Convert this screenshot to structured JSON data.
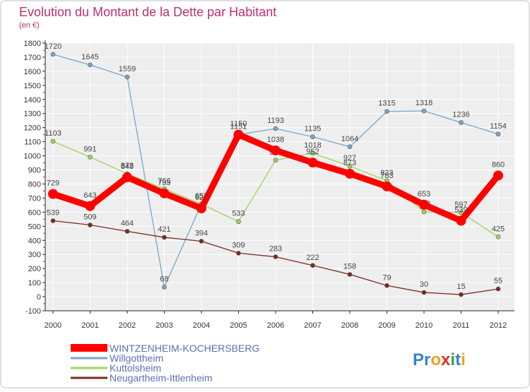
{
  "chart_data": {
    "type": "line",
    "title": "Evolution du Montant de la Dette par Habitant",
    "subtitle": "(en €)",
    "x": [
      "2000",
      "2001",
      "2002",
      "2003",
      "2004",
      "2005",
      "2006",
      "2007",
      "2008",
      "2009",
      "2010",
      "2011",
      "2012"
    ],
    "y_ticks": [
      "-100",
      "0",
      "100",
      "200",
      "300",
      "400",
      "500",
      "600",
      "700",
      "800",
      "900",
      "1000",
      "1100",
      "1200",
      "1300",
      "1400",
      "1500",
      "1600",
      "1700",
      "1800"
    ],
    "ylim": [
      -100,
      1800
    ],
    "grid": true,
    "legend_position": "bottom-left",
    "series": [
      {
        "name": "WINTZENHEIM-KOCHERSBERG",
        "color": "#ff0000",
        "values": [
          729,
          643,
          848,
          733,
          627,
          1150,
          1038,
          952,
          873,
          783,
          653,
          539,
          860
        ],
        "labels": [
          "729",
          "643",
          "848",
          "733",
          "627",
          "1150",
          "1038",
          "952",
          "873",
          "783",
          "653",
          "539",
          "860"
        ]
      },
      {
        "name": "Willgottheim",
        "color": "#7aa6c9",
        "values": [
          1720,
          1645,
          1559,
          68,
          657,
          1151,
          1193,
          1135,
          1064,
          1315,
          1318,
          1236,
          1154
        ],
        "labels": [
          "1720",
          "1645",
          "1559",
          "68",
          "657",
          "1151",
          "1193",
          "1135",
          "1064",
          "1315",
          "1318",
          "1236",
          "1154"
        ]
      },
      {
        "name": "Kuttolsheim",
        "color": "#9ed45a",
        "values": [
          1103,
          991,
          873,
          766,
          657,
          533,
          969,
          1018,
          927,
          823,
          602,
          597,
          425
        ],
        "labels": [
          "1103",
          "991",
          "873",
          "766",
          "657",
          "533",
          "969",
          "1018",
          "927",
          "823",
          "602",
          "597",
          "425"
        ]
      },
      {
        "name": "Neugartheim-Ittlenheim",
        "color": "#7a2a22",
        "values": [
          539,
          509,
          464,
          421,
          394,
          309,
          283,
          222,
          158,
          79,
          30,
          15,
          55
        ],
        "labels": [
          "539",
          "509",
          "464",
          "421",
          "394",
          "309",
          "283",
          "222",
          "158",
          "79",
          "30",
          "15",
          "55"
        ]
      }
    ]
  },
  "logo": {
    "text": "Proxiti",
    "letters": [
      "P",
      "r",
      "o",
      "x",
      "i",
      "t",
      "i"
    ],
    "colors": [
      "#3a7fd0",
      "#3a7fd0",
      "#f0a020",
      "#e03030",
      "#3aa040",
      "#3a7fd0",
      "#f0a020"
    ]
  }
}
